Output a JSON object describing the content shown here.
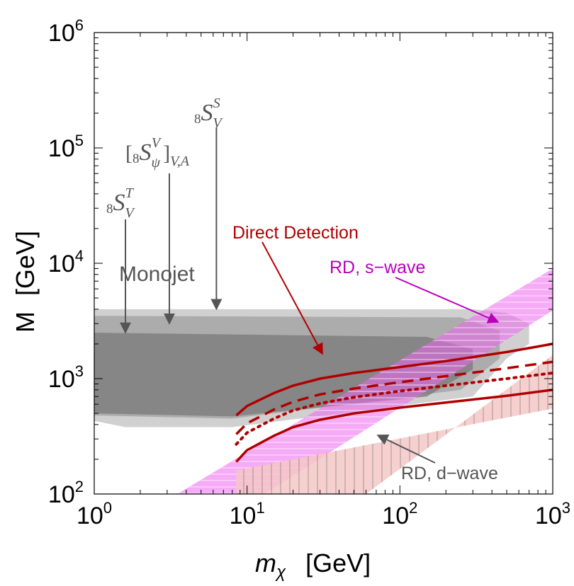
{
  "chart_data": {
    "type": "area",
    "x_axis": {
      "scale": "log",
      "range": [
        1,
        1000
      ],
      "tick_values": [
        1,
        10,
        100,
        1000
      ],
      "tick_bases": [
        "10",
        "10",
        "10",
        "10"
      ],
      "tick_exponents": [
        "0",
        "1",
        "2",
        "3"
      ],
      "label_main": "m",
      "label_sub": "χ",
      "label_unit": "[GeV]"
    },
    "y_axis": {
      "scale": "log",
      "range": [
        100,
        1000000
      ],
      "tick_values": [
        100,
        1000,
        10000,
        100000,
        1000000
      ],
      "tick_bases": [
        "10",
        "10",
        "10",
        "10",
        "10"
      ],
      "tick_exponents": [
        "2",
        "3",
        "4",
        "5",
        "6"
      ],
      "label_main": "M",
      "label_unit": "[GeV]"
    },
    "regions": [
      {
        "name": "Monojet outer",
        "color": "#c8c8c8",
        "x": [
          1,
          1,
          300,
          500,
          700,
          700,
          500,
          300,
          8,
          1.6,
          1
        ],
        "y": [
          430,
          4000,
          4000,
          3700,
          3000,
          2000,
          1500,
          700,
          380,
          380,
          430
        ]
      },
      {
        "name": "Monojet middle",
        "color": "#a0a0a0",
        "x": [
          1,
          1,
          250,
          450,
          450,
          250,
          8,
          1
        ],
        "y": [
          480,
          3500,
          3400,
          2600,
          1500,
          800,
          450,
          480
        ]
      },
      {
        "name": "Monojet inner",
        "color": "#7a7a7a",
        "x": [
          1,
          1,
          150,
          300,
          300,
          150,
          8,
          1
        ],
        "y": [
          500,
          2500,
          2300,
          1800,
          1200,
          700,
          470,
          500
        ]
      },
      {
        "name": "RD, s-wave band",
        "color": "#ee66ee",
        "x": [
          3.5,
          13,
          1000,
          1000,
          3.5
        ],
        "y": [
          100,
          100,
          3900,
          9000,
          100
        ]
      },
      {
        "name": "RD, d-wave band",
        "color": "#f5c7c7",
        "x": [
          8.5,
          60,
          1000,
          1000,
          8.5,
          8.5
        ],
        "y": [
          100,
          100,
          1600,
          550,
          160,
          100
        ]
      }
    ],
    "series": [
      {
        "name": "Direct Detection solid upper",
        "style": "solid",
        "color": "#b00000",
        "x": [
          8.5,
          10,
          15,
          20,
          30,
          50,
          100,
          200,
          500,
          1000
        ],
        "y": [
          480,
          580,
          750,
          870,
          1000,
          1120,
          1260,
          1420,
          1700,
          2000
        ]
      },
      {
        "name": "Direct Detection dashed",
        "style": "dashed",
        "color": "#b00000",
        "x": [
          8.5,
          10,
          15,
          20,
          30,
          50,
          100,
          200,
          500,
          1000
        ],
        "y": [
          330,
          410,
          540,
          630,
          730,
          820,
          930,
          1050,
          1230,
          1400
        ]
      },
      {
        "name": "Direct Detection dotted",
        "style": "dotted",
        "color": "#b00000",
        "x": [
          8.5,
          10,
          15,
          20,
          30,
          50,
          100,
          200,
          500,
          1000
        ],
        "y": [
          270,
          340,
          450,
          530,
          610,
          690,
          780,
          870,
          1000,
          1120
        ]
      },
      {
        "name": "Direct Detection solid lower",
        "style": "solid",
        "color": "#b00000",
        "x": [
          8.5,
          10,
          15,
          20,
          30,
          50,
          100,
          200,
          500,
          1000
        ],
        "y": [
          190,
          240,
          320,
          380,
          440,
          500,
          560,
          620,
          710,
          800
        ]
      }
    ],
    "annotations": {
      "monojet": "Monojet",
      "direct_detection": "Direct Detection",
      "rd_s_wave": "RD, s−wave",
      "rd_d_wave": "RD, d−wave",
      "model_tensor": {
        "prefix": "8",
        "letter": "S",
        "sub": "V",
        "sup": "T",
        "arrow_x": 1.6,
        "arrow_y": 2500
      },
      "model_vector": {
        "bracket_open": "[",
        "prefix": "8",
        "letter": "S",
        "sub": "ψ",
        "sup": "V",
        "bracket_close": "]",
        "tail": "V,A",
        "arrow_x": 3.1,
        "arrow_y": 3000
      },
      "model_scalar": {
        "prefix": "8",
        "letter": "S",
        "sub": "V",
        "sup": "S",
        "arrow_x": 6.3,
        "arrow_y": 4000
      }
    }
  }
}
